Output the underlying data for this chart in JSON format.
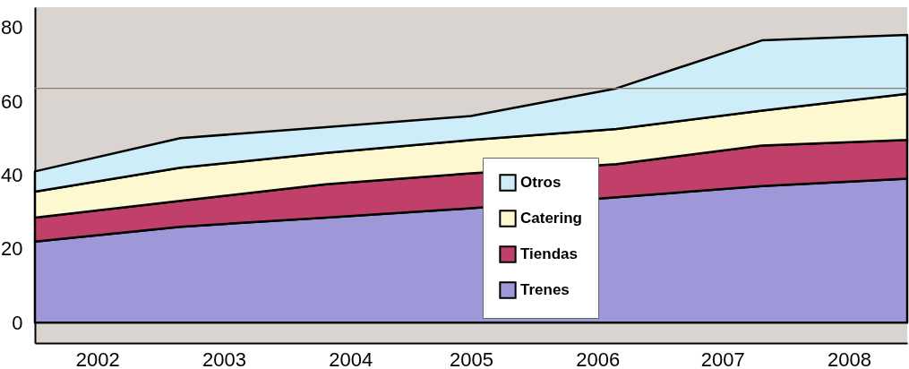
{
  "chart_data": {
    "type": "area",
    "stacked": true,
    "x": [
      2002,
      2003,
      2004,
      2005,
      2006,
      2007,
      2008
    ],
    "xlim": [
      2002,
      2008
    ],
    "xticks": [
      {
        "value": 2002.43,
        "label": "2002"
      },
      {
        "value": 2003.3,
        "label": "2003"
      },
      {
        "value": 2004.17,
        "label": "2004"
      },
      {
        "value": 2005.0,
        "label": "2005"
      },
      {
        "value": 2005.87,
        "label": "2006"
      },
      {
        "value": 2006.73,
        "label": "2007"
      },
      {
        "value": 2007.6,
        "label": "2008"
      }
    ],
    "ylim": [
      -5.5,
      85.5
    ],
    "yticks": [
      0,
      20,
      40,
      60,
      80
    ],
    "series": [
      {
        "name": "Trenes",
        "color": "#9f98d8",
        "values": [
          22,
          26,
          28.5,
          31,
          34,
          37,
          39
        ]
      },
      {
        "name": "Tiendas",
        "color": "#c0406a",
        "values": [
          6.5,
          7,
          9,
          9.5,
          9,
          11,
          10.5
        ]
      },
      {
        "name": "Catering",
        "color": "#fdf8d0",
        "values": [
          7,
          9,
          8.5,
          9,
          9.5,
          9.5,
          12.5
        ]
      },
      {
        "name": "Otros",
        "color": "#cdeef8",
        "values": [
          5.5,
          8,
          7,
          6.5,
          11,
          19,
          16
        ]
      }
    ],
    "ref_lines": [
      {
        "axis": "y",
        "value": 63.5,
        "color": "#8a7a70"
      }
    ],
    "legend": "bottom right",
    "grid": false
  }
}
